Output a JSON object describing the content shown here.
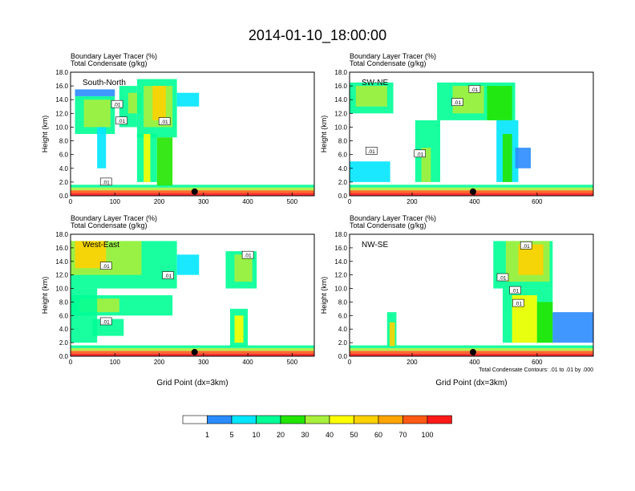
{
  "figure_title": "2014-01-10_18:00:00",
  "footnote": "Total Condensate Contours: .01 to .01 by .000",
  "colors": {
    "levels": [
      "#ffffff",
      "#2a8cff",
      "#00e6ff",
      "#00ff96",
      "#22e600",
      "#a8f03c",
      "#ffff00",
      "#ffd200",
      "#ffa500",
      "#ff5a14",
      "#ff1a1a"
    ],
    "contour": "#000000",
    "marker": "#000000"
  },
  "chart_data": [
    {
      "type": "heatmap",
      "panel_label": "South-North",
      "title_lines": [
        "Boundary Layer Tracer   (%)",
        "Total Condensate   (g/kg)"
      ],
      "ylabel": "Height (km)",
      "xlabel": "",
      "xlim": [
        0,
        550
      ],
      "ylim": [
        0,
        18
      ],
      "xticks": [
        "0",
        "100",
        "200",
        "300",
        "400",
        "500"
      ],
      "xtick_values": [
        0,
        100,
        200,
        300,
        400,
        500
      ],
      "yticks": [
        "0.0",
        "2.0",
        "4.0",
        "6.0",
        "8.0",
        "10.0",
        "12.0",
        "14.0",
        "16.0",
        "18.0"
      ],
      "contour_labels": [
        {
          "text": ".01",
          "x": 80,
          "y": 2.0
        },
        {
          "text": ".01",
          "x": 105,
          "y": 13.3
        },
        {
          "text": ".01",
          "x": 115,
          "y": 10.9
        },
        {
          "text": ".01",
          "x": 212,
          "y": 10.8
        }
      ],
      "marker_x": 280,
      "cells": [
        {
          "x0": 0,
          "x1": 550,
          "y0": 0,
          "y1": 0.4,
          "level": 10
        },
        {
          "x0": 0,
          "x1": 550,
          "y0": 0.4,
          "y1": 0.8,
          "level": 9
        },
        {
          "x0": 0,
          "x1": 550,
          "y0": 0.8,
          "y1": 1.2,
          "level": 5
        },
        {
          "x0": 0,
          "x1": 550,
          "y0": 1.2,
          "y1": 1.6,
          "level": 3
        },
        {
          "x0": 10,
          "x1": 100,
          "y0": 14.5,
          "y1": 15.5,
          "level": 1
        },
        {
          "x0": 10,
          "x1": 100,
          "y0": 9.0,
          "y1": 14.5,
          "level": 3
        },
        {
          "x0": 30,
          "x1": 90,
          "y0": 10,
          "y1": 14,
          "level": 5
        },
        {
          "x0": 60,
          "x1": 80,
          "y0": 4,
          "y1": 10,
          "level": 2
        },
        {
          "x0": 110,
          "x1": 150,
          "y0": 10,
          "y1": 16,
          "level": 3
        },
        {
          "x0": 130,
          "x1": 160,
          "y0": 12,
          "y1": 15,
          "level": 5
        },
        {
          "x0": 150,
          "x1": 240,
          "y0": 8.5,
          "y1": 17,
          "level": 3
        },
        {
          "x0": 165,
          "x1": 230,
          "y0": 10,
          "y1": 16,
          "level": 5
        },
        {
          "x0": 185,
          "x1": 215,
          "y0": 11,
          "y1": 16,
          "level": 7
        },
        {
          "x0": 150,
          "x1": 195,
          "y0": 2,
          "y1": 9,
          "level": 3
        },
        {
          "x0": 165,
          "x1": 180,
          "y0": 2,
          "y1": 9,
          "level": 6
        },
        {
          "x0": 195,
          "x1": 230,
          "y0": 1.5,
          "y1": 8.5,
          "level": 4
        },
        {
          "x0": 240,
          "x1": 290,
          "y0": 13,
          "y1": 15,
          "level": 2
        }
      ]
    },
    {
      "type": "heatmap",
      "panel_label": "SW-NE",
      "title_lines": [
        "Boundary Layer Tracer   (%)",
        "Total Condensate   (g/kg)"
      ],
      "ylabel": "Height (km)",
      "xlabel": "",
      "xlim": [
        0,
        780
      ],
      "ylim": [
        0,
        18
      ],
      "xticks": [
        "0",
        "200",
        "400",
        "600"
      ],
      "xtick_values": [
        0,
        200,
        400,
        600
      ],
      "yticks": [
        "0.0",
        "2.0",
        "4.0",
        "6.0",
        "8.0",
        "10.0",
        "12.0",
        "14.0",
        "16.0",
        "18.0"
      ],
      "contour_labels": [
        {
          "text": ".01",
          "x": 70,
          "y": 6.5
        },
        {
          "text": ".01",
          "x": 225,
          "y": 6.1
        },
        {
          "text": ".01",
          "x": 400,
          "y": 15.5
        },
        {
          "text": ".01",
          "x": 345,
          "y": 13.6
        }
      ],
      "marker_x": 395,
      "cells": [
        {
          "x0": 0,
          "x1": 780,
          "y0": 0,
          "y1": 0.4,
          "level": 10
        },
        {
          "x0": 0,
          "x1": 780,
          "y0": 0.4,
          "y1": 0.8,
          "level": 9
        },
        {
          "x0": 0,
          "x1": 780,
          "y0": 0.8,
          "y1": 1.2,
          "level": 5
        },
        {
          "x0": 0,
          "x1": 780,
          "y0": 1.2,
          "y1": 1.6,
          "level": 3
        },
        {
          "x0": 0,
          "x1": 140,
          "y0": 12,
          "y1": 16.5,
          "level": 3
        },
        {
          "x0": 20,
          "x1": 120,
          "y0": 13,
          "y1": 16,
          "level": 5
        },
        {
          "x0": 0,
          "x1": 130,
          "y0": 2,
          "y1": 5,
          "level": 2
        },
        {
          "x0": 210,
          "x1": 290,
          "y0": 2,
          "y1": 11,
          "level": 3
        },
        {
          "x0": 230,
          "x1": 260,
          "y0": 2,
          "y1": 7,
          "level": 5
        },
        {
          "x0": 280,
          "x1": 530,
          "y0": 11,
          "y1": 16.5,
          "level": 3
        },
        {
          "x0": 330,
          "x1": 430,
          "y0": 12,
          "y1": 16,
          "level": 5
        },
        {
          "x0": 440,
          "x1": 520,
          "y0": 11,
          "y1": 16,
          "level": 4
        },
        {
          "x0": 470,
          "x1": 540,
          "y0": 2,
          "y1": 11,
          "level": 2
        },
        {
          "x0": 490,
          "x1": 520,
          "y0": 2,
          "y1": 9,
          "level": 4
        },
        {
          "x0": 530,
          "x1": 580,
          "y0": 4,
          "y1": 7,
          "level": 1
        }
      ]
    },
    {
      "type": "heatmap",
      "panel_label": "West-East",
      "title_lines": [
        "Boundary Layer Tracer   (%)",
        "Total Condensate   (g/kg)"
      ],
      "ylabel": "Height (km)",
      "xlabel": "Grid Point (dx=3km)",
      "xlim": [
        0,
        550
      ],
      "ylim": [
        0,
        18
      ],
      "xticks": [
        "0",
        "100",
        "200",
        "300",
        "400",
        "500"
      ],
      "xtick_values": [
        0,
        100,
        200,
        300,
        400,
        500
      ],
      "yticks": [
        "0.0",
        "2.0",
        "4.0",
        "6.0",
        "8.0",
        "10.0",
        "12.0",
        "14.0",
        "16.0",
        "18.0"
      ],
      "contour_labels": [
        {
          "text": ".01",
          "x": 80,
          "y": 13.3
        },
        {
          "text": ".01",
          "x": 220,
          "y": 11.9
        },
        {
          "text": ".01",
          "x": 80,
          "y": 5.1
        },
        {
          "text": ".01",
          "x": 400,
          "y": 14.9
        }
      ],
      "marker_x": 280,
      "cells": [
        {
          "x0": 0,
          "x1": 550,
          "y0": 0,
          "y1": 0.4,
          "level": 10
        },
        {
          "x0": 0,
          "x1": 550,
          "y0": 0.4,
          "y1": 0.8,
          "level": 9
        },
        {
          "x0": 0,
          "x1": 550,
          "y0": 0.8,
          "y1": 1.2,
          "level": 5
        },
        {
          "x0": 0,
          "x1": 550,
          "y0": 1.2,
          "y1": 1.6,
          "level": 3
        },
        {
          "x0": 0,
          "x1": 240,
          "y0": 10,
          "y1": 17,
          "level": 3
        },
        {
          "x0": 0,
          "x1": 160,
          "y0": 12,
          "y1": 17,
          "level": 5
        },
        {
          "x0": 10,
          "x1": 80,
          "y0": 13,
          "y1": 17,
          "level": 7
        },
        {
          "x0": 0,
          "x1": 230,
          "y0": 6,
          "y1": 9,
          "level": 3
        },
        {
          "x0": 20,
          "x1": 110,
          "y0": 6.5,
          "y1": 8.5,
          "level": 5
        },
        {
          "x0": 0,
          "x1": 60,
          "y0": 2,
          "y1": 10,
          "level": 3
        },
        {
          "x0": 50,
          "x1": 120,
          "y0": 3,
          "y1": 5.5,
          "level": 3
        },
        {
          "x0": 240,
          "x1": 290,
          "y0": 12,
          "y1": 15,
          "level": 2
        },
        {
          "x0": 350,
          "x1": 420,
          "y0": 10,
          "y1": 15.5,
          "level": 3
        },
        {
          "x0": 370,
          "x1": 410,
          "y0": 11,
          "y1": 15,
          "level": 5
        },
        {
          "x0": 360,
          "x1": 400,
          "y0": 1.5,
          "y1": 7,
          "level": 3
        },
        {
          "x0": 370,
          "x1": 390,
          "y0": 2,
          "y1": 6,
          "level": 6
        }
      ]
    },
    {
      "type": "heatmap",
      "panel_label": "NW-SE",
      "title_lines": [
        "Boundary Layer Tracer   (%)",
        "Total Condensate   (g/kg)"
      ],
      "ylabel": "Height (km)",
      "xlabel": "Grid Point (dx=3km)",
      "xlim": [
        0,
        780
      ],
      "ylim": [
        0,
        18
      ],
      "xticks": [
        "0",
        "200",
        "400",
        "600"
      ],
      "xtick_values": [
        0,
        200,
        400,
        600
      ],
      "yticks": [
        "0.0",
        "2.0",
        "4.0",
        "6.0",
        "8.0",
        "10.0",
        "12.0",
        "14.0",
        "16.0",
        "18.0"
      ],
      "contour_labels": [
        {
          "text": ".01",
          "x": 565,
          "y": 16.3
        },
        {
          "text": ".01",
          "x": 490,
          "y": 11.6
        },
        {
          "text": ".01",
          "x": 530,
          "y": 9.7
        },
        {
          "text": ".01",
          "x": 540,
          "y": 7.8
        }
      ],
      "marker_x": 395,
      "cells": [
        {
          "x0": 0,
          "x1": 780,
          "y0": 0,
          "y1": 0.4,
          "level": 10
        },
        {
          "x0": 0,
          "x1": 780,
          "y0": 0.4,
          "y1": 0.8,
          "level": 9
        },
        {
          "x0": 0,
          "x1": 780,
          "y0": 0.8,
          "y1": 1.2,
          "level": 5
        },
        {
          "x0": 0,
          "x1": 780,
          "y0": 1.2,
          "y1": 1.6,
          "level": 3
        },
        {
          "x0": 120,
          "x1": 150,
          "y0": 1.5,
          "y1": 6.5,
          "level": 3
        },
        {
          "x0": 128,
          "x1": 145,
          "y0": 1.5,
          "y1": 5,
          "level": 7
        },
        {
          "x0": 460,
          "x1": 650,
          "y0": 10,
          "y1": 17,
          "level": 3
        },
        {
          "x0": 500,
          "x1": 640,
          "y0": 11,
          "y1": 17,
          "level": 5
        },
        {
          "x0": 540,
          "x1": 620,
          "y0": 12,
          "y1": 16.5,
          "level": 7
        },
        {
          "x0": 490,
          "x1": 650,
          "y0": 2,
          "y1": 10,
          "level": 3
        },
        {
          "x0": 520,
          "x1": 600,
          "y0": 2,
          "y1": 9,
          "level": 6
        },
        {
          "x0": 600,
          "x1": 650,
          "y0": 2,
          "y1": 8,
          "level": 4
        },
        {
          "x0": 650,
          "x1": 780,
          "y0": 2,
          "y1": 6.5,
          "level": 1
        }
      ]
    }
  ],
  "colorbar": {
    "labels": [
      "1",
      "5",
      "10",
      "20",
      "30",
      "40",
      "50",
      "60",
      "70",
      "100"
    ]
  }
}
